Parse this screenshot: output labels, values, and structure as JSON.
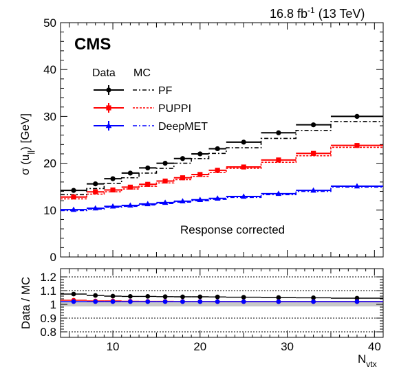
{
  "chart_data": [
    {
      "type": "line",
      "panel": "main",
      "header_right": {
        "lumi": "16.8 fb",
        "lumi_exp": "-1",
        "energy": "(13 TeV)"
      },
      "experiment": "CMS",
      "annotation": "Response corrected",
      "ylabel": {
        "main": "σ (u",
        "sub": "||",
        "unit": ") [GeV]"
      },
      "ylim": [
        0,
        50
      ],
      "xlim": [
        4,
        41
      ],
      "y_ticks": [
        "0",
        "10",
        "20",
        "30",
        "40",
        "50"
      ],
      "legend": {
        "placement": "top-left",
        "header_data": "Data",
        "header_mc": "MC",
        "entries": [
          "PF",
          "PUPPI",
          "DeepMET"
        ]
      },
      "bins": [
        [
          4,
          7
        ],
        [
          7,
          9
        ],
        [
          9,
          11
        ],
        [
          11,
          13
        ],
        [
          13,
          15
        ],
        [
          15,
          17
        ],
        [
          17,
          19
        ],
        [
          19,
          21
        ],
        [
          21,
          23
        ],
        [
          23,
          27
        ],
        [
          27,
          31
        ],
        [
          31,
          35
        ],
        [
          35,
          41
        ]
      ],
      "series": [
        {
          "name": "PF",
          "color": "#000000",
          "data": [
            14.2,
            15.6,
            16.7,
            17.9,
            19.0,
            20.0,
            21.0,
            22.0,
            23.1,
            24.5,
            26.5,
            28.2,
            30.0
          ],
          "mc": [
            13.3,
            14.6,
            15.7,
            16.9,
            17.9,
            18.9,
            20.0,
            21.0,
            22.1,
            23.3,
            25.3,
            27.0,
            28.9
          ]
        },
        {
          "name": "PUPPI",
          "color": "#ff0000",
          "data": [
            12.8,
            13.9,
            14.3,
            14.9,
            15.5,
            16.2,
            16.9,
            17.6,
            18.5,
            19.2,
            20.7,
            22.1,
            23.8
          ],
          "mc": [
            12.4,
            13.4,
            13.9,
            14.5,
            15.1,
            15.8,
            16.5,
            17.2,
            18.0,
            18.9,
            20.2,
            21.6,
            23.4
          ]
        },
        {
          "name": "DeepMET",
          "color": "#0000ff",
          "data": [
            10.1,
            10.4,
            10.8,
            11.0,
            11.3,
            11.6,
            11.9,
            12.2,
            12.5,
            12.9,
            13.5,
            14.2,
            15.1
          ],
          "mc": [
            9.9,
            10.2,
            10.6,
            10.8,
            11.1,
            11.4,
            11.7,
            12.0,
            12.3,
            12.7,
            13.3,
            14.0,
            14.9
          ]
        }
      ]
    },
    {
      "type": "line",
      "panel": "ratio",
      "ylabel": "Data  / MC",
      "xlabel": "N",
      "xlabel_sub": "vtx",
      "ylim": [
        0.76,
        1.26
      ],
      "y_ticks": [
        "0.8",
        "0.9",
        "1",
        "1.1",
        "1.2"
      ],
      "x_ticks": [
        "10",
        "20",
        "30",
        "40"
      ],
      "band": [
        0.985,
        1.015
      ],
      "series": [
        {
          "name": "PF",
          "color": "#000000",
          "values": [
            1.075,
            1.065,
            1.06,
            1.058,
            1.058,
            1.056,
            1.055,
            1.055,
            1.054,
            1.052,
            1.05,
            1.048,
            1.045
          ]
        },
        {
          "name": "PUPPI",
          "color": "#ff0000",
          "values": [
            1.03,
            1.025,
            1.025,
            1.023,
            1.022,
            1.022,
            1.021,
            1.021,
            1.02,
            1.02,
            1.02,
            1.02,
            1.02
          ]
        },
        {
          "name": "DeepMET",
          "color": "#0000ff",
          "values": [
            1.02,
            1.02,
            1.02,
            1.02,
            1.02,
            1.02,
            1.02,
            1.02,
            1.02,
            1.02,
            1.02,
            1.02,
            1.02
          ]
        }
      ]
    }
  ]
}
